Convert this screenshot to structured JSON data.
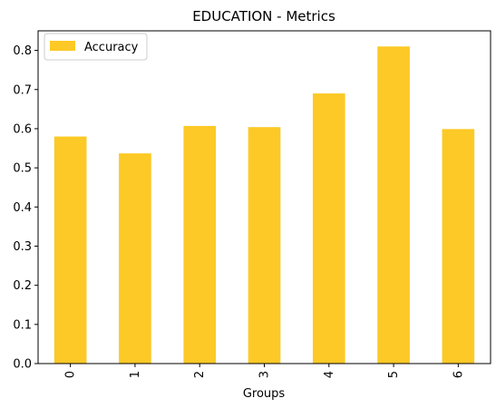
{
  "chart_data": {
    "type": "bar",
    "title": "EDUCATION - Metrics",
    "xlabel": "Groups",
    "ylabel": "",
    "categories": [
      "0",
      "1",
      "2",
      "3",
      "4",
      "5",
      "6"
    ],
    "series": [
      {
        "name": "Accuracy",
        "values": [
          0.58,
          0.537,
          0.607,
          0.604,
          0.69,
          0.81,
          0.599
        ]
      }
    ],
    "ylim": [
      0,
      0.85
    ],
    "yticks": [
      "0.0",
      "0.1",
      "0.2",
      "0.3",
      "0.4",
      "0.5",
      "0.6",
      "0.7",
      "0.8"
    ],
    "grid": false,
    "legend_position": "top-left",
    "colors": {
      "bar": "#FCC926",
      "axis": "#000000",
      "legend_border": "#cccccc"
    }
  }
}
